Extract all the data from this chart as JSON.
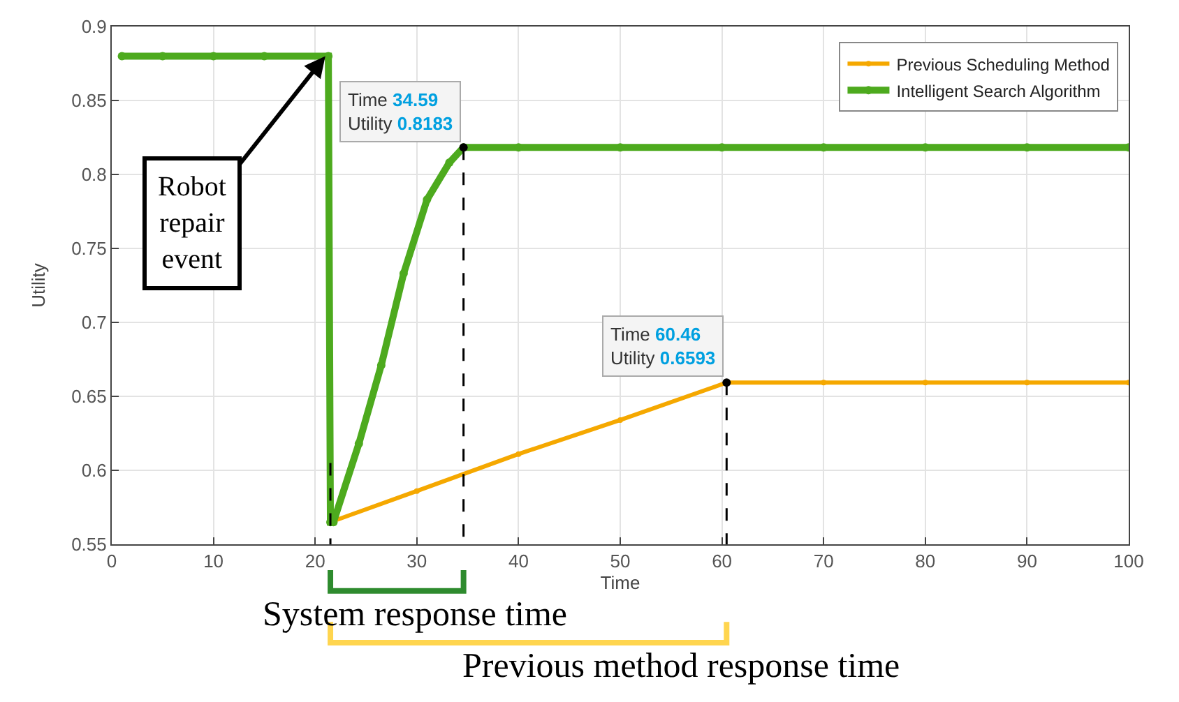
{
  "chart_data": {
    "type": "line",
    "xlabel": "Time",
    "ylabel": "Utility",
    "xlim": [
      0,
      100
    ],
    "ylim": [
      0.55,
      0.9
    ],
    "xticks": [
      0,
      10,
      20,
      30,
      40,
      50,
      60,
      70,
      80,
      90,
      100
    ],
    "yticks": [
      0.55,
      0.6,
      0.65,
      0.7,
      0.75,
      0.8,
      0.85,
      0.9
    ],
    "ref_lines": [
      {
        "axis": "x",
        "value": 21.5,
        "color": "#000000",
        "line_style": "dashed"
      },
      {
        "axis": "x",
        "value": 34.59,
        "color": "#000000",
        "line_style": "dashed"
      },
      {
        "axis": "x",
        "value": 60.46,
        "color": "#000000",
        "line_style": "dashed"
      }
    ],
    "grid": true,
    "legend": "top right",
    "marker": "circle",
    "line_style": "solid",
    "series": [
      {
        "name": "Previous Scheduling Method",
        "color": "#f5a800",
        "x": [
          21.5,
          30,
          40,
          50,
          60.46,
          70,
          80,
          90,
          100
        ],
        "values": [
          0.565,
          0.586,
          0.611,
          0.634,
          0.6593,
          0.6593,
          0.6593,
          0.6593,
          0.6593
        ]
      },
      {
        "name": "Intelligent Search Algorithm",
        "color": "#4daa1e",
        "x": [
          1,
          5,
          10,
          15,
          21.3,
          21.5,
          21.8,
          24.3,
          26.5,
          28.7,
          31.0,
          33.2,
          34.59,
          40,
          50,
          60,
          70,
          80,
          90,
          100
        ],
        "values": [
          0.88,
          0.88,
          0.88,
          0.88,
          0.88,
          0.565,
          0.565,
          0.618,
          0.671,
          0.733,
          0.783,
          0.808,
          0.8183,
          0.8183,
          0.8183,
          0.8183,
          0.8183,
          0.8183,
          0.8183,
          0.8183
        ]
      }
    ],
    "annotations": [
      {
        "text": "Time 34.59\nUtility 0.8183",
        "x": 34.59,
        "y": 0.8183
      },
      {
        "text": "Time 60.46\nUtility 0.6593",
        "x": 60.46,
        "y": 0.6593
      },
      {
        "text": "Robot repair event",
        "x": 21,
        "y": 0.88
      },
      "System response time",
      "Previous method response time"
    ]
  }
}
